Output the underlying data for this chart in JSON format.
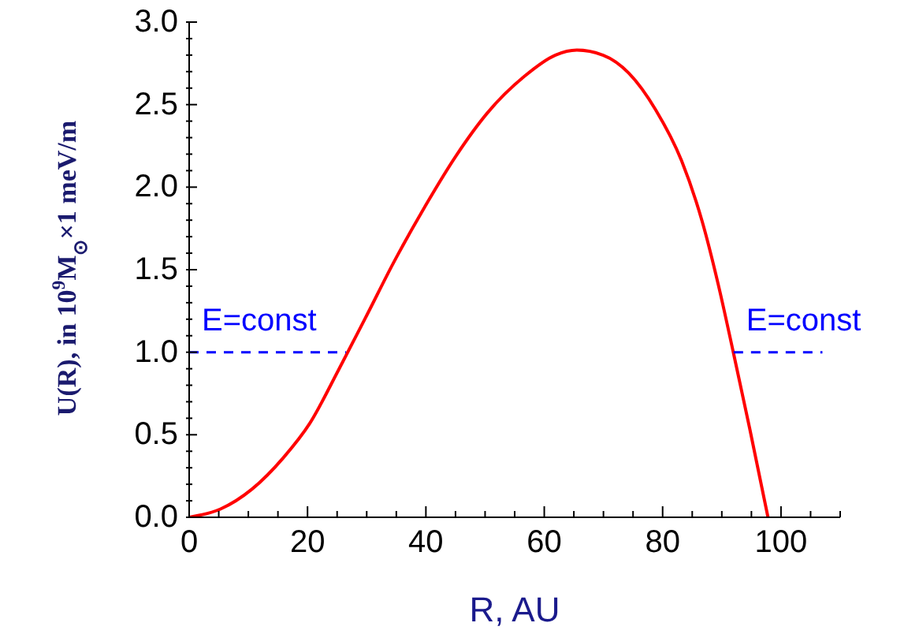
{
  "chart_data": {
    "type": "line",
    "xlabel": "R, AU",
    "ylabel": "U(R),  in 10$^{9}$M$_{⊙}$×1 meV/m",
    "xlim": [
      0,
      110
    ],
    "xticks": [
      0,
      {
        "value": 5,
        "label": null
      },
      20,
      {
        "value": 10,
        "label": null
      },
      {
        "value": 15,
        "label": null
      },
      {
        "value": 25,
        "label": null
      },
      {
        "value": 30,
        "label": null
      },
      {
        "value": 35,
        "label": null
      },
      40,
      {
        "value": 45,
        "label": null
      },
      {
        "value": 50,
        "label": null
      },
      {
        "value": 55,
        "label": null
      },
      60,
      {
        "value": 65,
        "label": null
      },
      {
        "value": 70,
        "label": null
      },
      {
        "value": 75,
        "label": null
      },
      80,
      {
        "value": 85,
        "label": null
      },
      {
        "value": 90,
        "label": null
      },
      {
        "value": 95,
        "label": null
      },
      100,
      {
        "value": 105,
        "label": null
      },
      {
        "value": 110,
        "label": null
      }
    ],
    "ylim": [
      0,
      3.0
    ],
    "yticks": [
      {
        "value": 0,
        "label": "0.0"
      },
      {
        "value": 0.1,
        "label": null
      },
      {
        "value": 0.2,
        "label": null
      },
      {
        "value": 0.3,
        "label": null
      },
      {
        "value": 0.4,
        "label": null
      },
      0.5,
      {
        "value": 0.6,
        "label": null
      },
      {
        "value": 0.7,
        "label": null
      },
      {
        "value": 0.8,
        "label": null
      },
      {
        "value": 0.9,
        "label": null
      },
      {
        "value": 1,
        "label": "1.0"
      },
      {
        "value": 1.1,
        "label": null
      },
      {
        "value": 1.2,
        "label": null
      },
      {
        "value": 1.3,
        "label": null
      },
      {
        "value": 1.4,
        "label": null
      },
      1.5,
      {
        "value": 1.6,
        "label": null
      },
      {
        "value": 1.7,
        "label": null
      },
      {
        "value": 1.8,
        "label": null
      },
      {
        "value": 1.9,
        "label": null
      },
      {
        "value": 2,
        "label": "2.0"
      },
      {
        "value": 2.1,
        "label": null
      },
      {
        "value": 2.2,
        "label": null
      },
      {
        "value": 2.3,
        "label": null
      },
      {
        "value": 2.4,
        "label": null
      },
      2.5,
      {
        "value": 2.6,
        "label": null
      },
      {
        "value": 2.7,
        "label": null
      },
      {
        "value": 2.8,
        "label": null
      },
      {
        "value": 2.9,
        "label": null
      },
      {
        "value": 3,
        "label": "3.0"
      }
    ],
    "grid": false,
    "legend": false,
    "marker": "none",
    "series": [
      {
        "color": "#ff0000",
        "line_style": "solid",
        "x": [
          0,
          5.3,
          10.6,
          15.9,
          20.4,
          25.2,
          30.1,
          34.5,
          39.8,
          45.1,
          50.4,
          56.6,
          61.9,
          65.5,
          69.9,
          74.3,
          78.8,
          83.2,
          86.7,
          89.4,
          92.0,
          94.7,
          97.8
        ],
        "values": [
          0,
          0.05,
          0.17,
          0.36,
          0.57,
          0.89,
          1.23,
          1.54,
          1.88,
          2.19,
          2.45,
          2.67,
          2.8,
          2.83,
          2.8,
          2.69,
          2.47,
          2.16,
          1.79,
          1.41,
          0.99,
          0.54,
          0
        ]
      },
      {
        "name": "E=const",
        "color": "#0000ff",
        "line_style": "dashed",
        "x": [
          0,
          26.5
        ],
        "values": [
          1,
          1
        ]
      },
      {
        "name": "E=const",
        "color": "#0000ff",
        "line_style": "dashed",
        "x": [
          92,
          107
        ],
        "values": [
          1,
          1
        ]
      }
    ]
  }
}
